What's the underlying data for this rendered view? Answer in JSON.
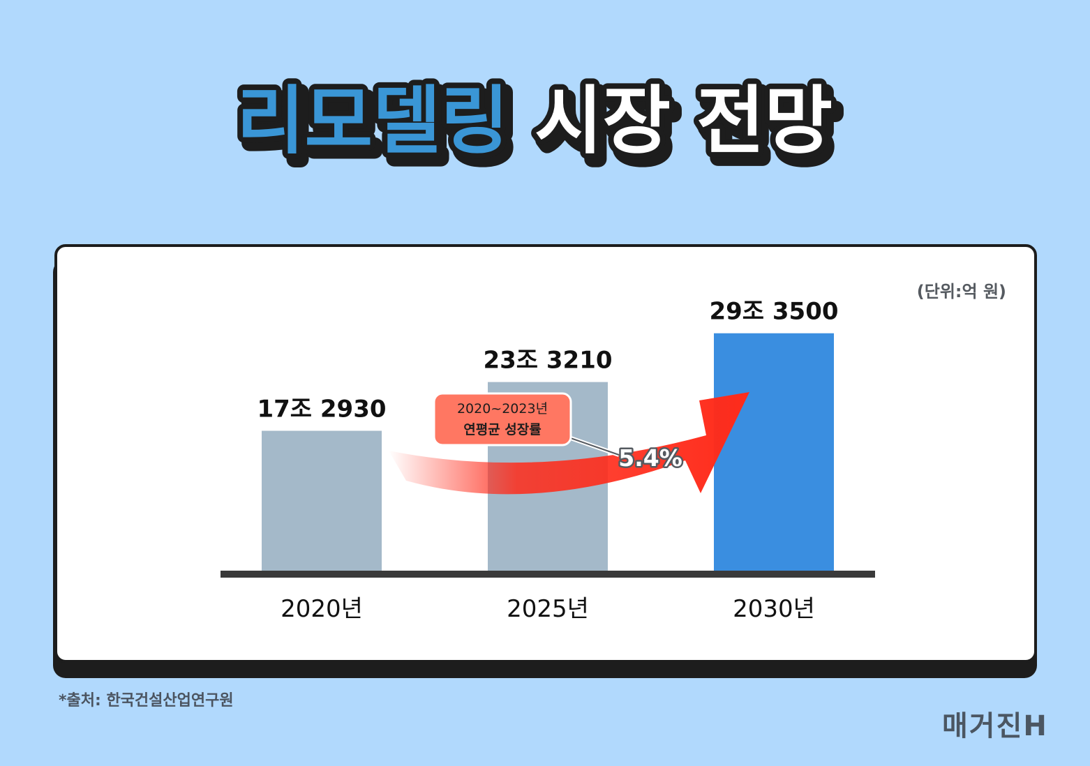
{
  "title": {
    "part1": "리모델링",
    "part2": "시장 전망"
  },
  "unit_label": "(단위:억 원)",
  "annotation": {
    "line1": "2020~2023년",
    "line2": "연평균 성장률",
    "value": "5.4%"
  },
  "source": "*출처: 한국건설산업연구원",
  "logo": "매거진H",
  "colors": {
    "background": "#b1d9fd",
    "title_blue": "#3a96d6",
    "bar_gray": "#a4b9c9",
    "bar_highlight": "#3a8ee0",
    "arrow": "#ff2b1a",
    "badge": "#ff7762"
  },
  "chart_data": {
    "type": "bar",
    "categories": [
      "2020년",
      "2025년",
      "2030년"
    ],
    "values": [
      172930,
      233210,
      293500
    ],
    "value_labels": [
      "17조 2930",
      "23조 3210",
      "29조 3500"
    ],
    "highlight_index": 2,
    "ylim": [
      0,
      345000
    ]
  }
}
